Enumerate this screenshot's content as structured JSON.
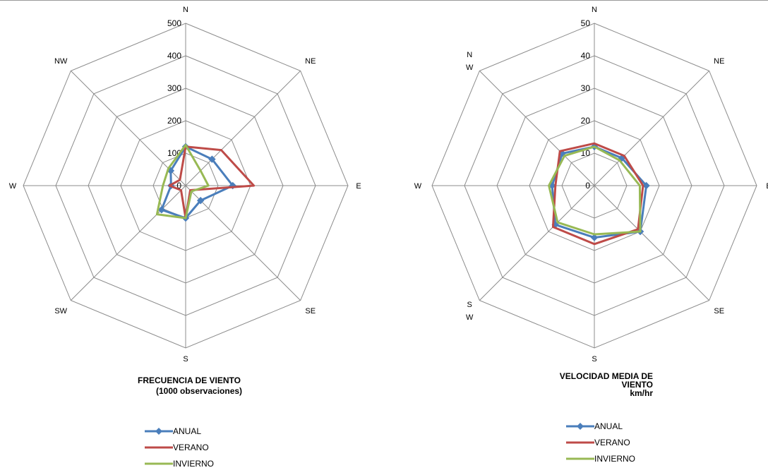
{
  "colors": {
    "grid": "#8c8c8c",
    "anual": "#4a7ebb",
    "verano": "#be4b48",
    "invierno": "#98b954"
  },
  "chart_data": [
    {
      "type": "radar",
      "title_lines": [
        "FRECUENCIA DE VIENTO",
        "(1000 observaciones)"
      ],
      "categories": [
        "N",
        "NE",
        "E",
        "SE",
        "S",
        "SW",
        "W",
        "NW"
      ],
      "category_labels": [
        "N",
        "NE",
        "E",
        "SE",
        "S",
        "SW",
        "W",
        "NW"
      ],
      "rmax": 500,
      "ticks": [
        0,
        100,
        200,
        300,
        400,
        500
      ],
      "tick_labels": [
        "0",
        "100",
        "200",
        "300",
        "400",
        "500"
      ],
      "series": [
        {
          "name": "ANUAL",
          "color_key": "anual",
          "markers": true,
          "values": [
            120,
            115,
            145,
            65,
            100,
            105,
            45,
            65
          ]
        },
        {
          "name": "VERANO",
          "color_key": "verano",
          "markers": false,
          "values": [
            120,
            155,
            210,
            20,
            100,
            20,
            50,
            25
          ]
        },
        {
          "name": "INVIERNO",
          "color_key": "invierno",
          "markers": false,
          "values": [
            125,
            65,
            70,
            25,
            100,
            125,
            70,
            75
          ]
        }
      ],
      "legend": [
        "ANUAL",
        "VERANO",
        "INVIERNO"
      ],
      "grid": true
    },
    {
      "type": "radar",
      "title_lines": [
        "VELOCIDAD MEDIA DE",
        "VIENTO",
        "km/hr"
      ],
      "categories": [
        "N",
        "NE",
        "E",
        "SE",
        "S",
        "SW",
        "W",
        "NW"
      ],
      "category_labels": [
        [
          "N"
        ],
        [
          "NE"
        ],
        [
          "E"
        ],
        [
          "SE"
        ],
        [
          "S"
        ],
        [
          "S",
          "W"
        ],
        [
          "W"
        ],
        [
          "N",
          "W"
        ]
      ],
      "rmax": 50,
      "ticks": [
        0,
        10,
        20,
        30,
        40,
        50
      ],
      "tick_labels": [
        "0",
        "10",
        "20",
        "30",
        "40",
        "50"
      ],
      "series": [
        {
          "name": "ANUAL",
          "color_key": "anual",
          "markers": true,
          "values": [
            12,
            12,
            16,
            20,
            16,
            17,
            13,
            14
          ]
        },
        {
          "name": "VERANO",
          "color_key": "verano",
          "markers": false,
          "values": [
            13,
            13,
            15,
            19,
            18,
            18,
            12,
            15
          ]
        },
        {
          "name": "INVIERNO",
          "color_key": "invierno",
          "markers": false,
          "values": [
            12,
            11,
            14,
            20,
            15,
            16,
            14,
            13
          ]
        }
      ],
      "legend": [
        "ANUAL",
        "VERANO",
        "INVIERNO"
      ],
      "grid": true
    }
  ]
}
